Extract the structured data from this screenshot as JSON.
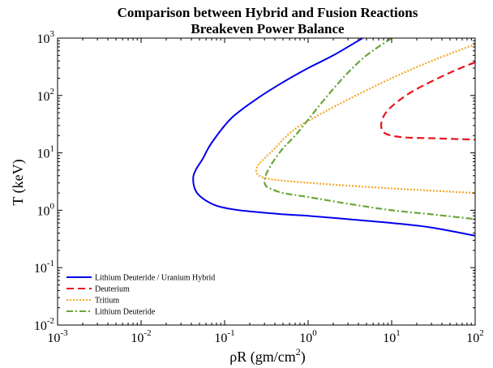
{
  "chart_data": {
    "type": "line",
    "title": "Comparison between Hybrid and Fusion Reactions",
    "subtitle": "Breakeven Power Balance",
    "xlabel": {
      "prefix": "ρR (gm/cm",
      "sup": "2",
      "suffix": ")"
    },
    "ylabel": "T (keV)",
    "xscale": "log",
    "yscale": "log",
    "xlim": [
      0.001,
      100
    ],
    "ylim": [
      0.01,
      1000
    ],
    "grid": false,
    "legend_position": "bottom-left",
    "x_ticks": [
      {
        "value": 0.001,
        "base": "10",
        "exp": "-3"
      },
      {
        "value": 0.01,
        "base": "10",
        "exp": "-2"
      },
      {
        "value": 0.1,
        "base": "10",
        "exp": "-1"
      },
      {
        "value": 1,
        "base": "10",
        "exp": "0"
      },
      {
        "value": 10,
        "base": "10",
        "exp": "1"
      },
      {
        "value": 100,
        "base": "10",
        "exp": "2"
      }
    ],
    "y_ticks": [
      {
        "value": 0.01,
        "base": "10",
        "exp": "-2"
      },
      {
        "value": 0.1,
        "base": "10",
        "exp": "-1"
      },
      {
        "value": 1,
        "base": "10",
        "exp": "0"
      },
      {
        "value": 10,
        "base": "10",
        "exp": "1"
      },
      {
        "value": 100,
        "base": "10",
        "exp": "2"
      },
      {
        "value": 1000,
        "base": "10",
        "exp": "3"
      }
    ],
    "series": [
      {
        "name": "Lithium Deuteride / Uranium Hybrid",
        "color": "#0000ee",
        "style": "solid",
        "x": [
          4.5,
          2.0,
          1.0,
          0.5,
          0.25,
          0.12,
          0.07,
          0.055,
          0.045,
          0.042,
          0.045,
          0.055,
          0.08,
          0.15,
          0.5,
          1,
          3,
          10,
          30,
          100
        ],
        "y": [
          1000,
          500,
          300,
          170,
          90,
          40,
          15,
          8,
          5,
          3.5,
          2.2,
          1.6,
          1.2,
          1.0,
          0.85,
          0.8,
          0.7,
          0.6,
          0.5,
          0.36
        ]
      },
      {
        "name": "Deuterium",
        "color": "#e8141c",
        "style": "dashed",
        "x": [
          100,
          50,
          20,
          12,
          8.5,
          7.5,
          8.0,
          10,
          15,
          30,
          100
        ],
        "y": [
          380,
          250,
          130,
          80,
          50,
          32,
          23,
          20,
          18.5,
          18,
          17
        ]
      },
      {
        "name": "Tritium",
        "color": "#f5a623",
        "style": "dotted",
        "x": [
          100,
          30,
          10,
          3,
          1,
          0.6,
          0.4,
          0.3,
          0.25,
          0.24,
          0.26,
          0.35,
          0.6,
          2,
          10,
          100
        ],
        "y": [
          780,
          400,
          200,
          85,
          36,
          22,
          12,
          8,
          6,
          4.8,
          4,
          3.5,
          3.2,
          2.8,
          2.4,
          2.0
        ]
      },
      {
        "name": "Lithium Deuteride",
        "color": "#6aa539",
        "style": "dashdot",
        "x": [
          10,
          5,
          3,
          2,
          1.4,
          1.0,
          0.7,
          0.5,
          0.38,
          0.32,
          0.3,
          0.31,
          0.35,
          0.5,
          1,
          3,
          10,
          30,
          100
        ],
        "y": [
          1000,
          500,
          250,
          130,
          70,
          38,
          20,
          12,
          7,
          4.5,
          3.3,
          2.7,
          2.4,
          2.0,
          1.7,
          1.3,
          1.0,
          0.85,
          0.7
        ]
      }
    ]
  }
}
